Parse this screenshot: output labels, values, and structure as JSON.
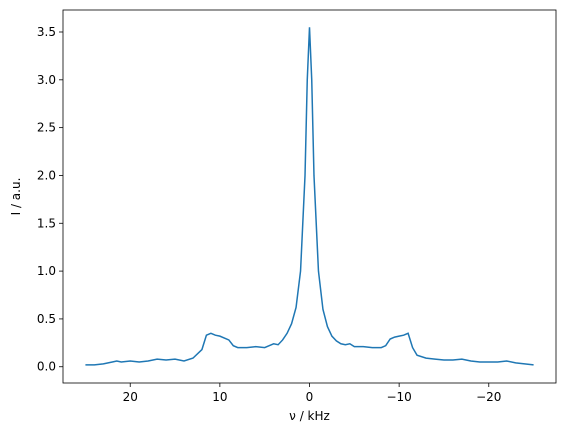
{
  "chart_data": {
    "type": "line",
    "xlabel": "ν / kHz",
    "ylabel": "I / a.u.",
    "x": [
      25,
      24,
      23,
      22,
      21.5,
      21,
      20,
      19,
      18,
      17,
      16,
      15,
      14,
      13,
      12,
      11.5,
      11,
      10.5,
      10,
      9,
      8.5,
      8,
      7,
      6,
      5,
      4.5,
      4,
      3.5,
      3,
      2.5,
      2,
      1.5,
      1,
      0.5,
      0.25,
      0,
      -0.25,
      -0.5,
      -1,
      -1.5,
      -2,
      -2.5,
      -3,
      -3.5,
      -4,
      -4.5,
      -5,
      -6,
      -7,
      -8,
      -8.5,
      -9,
      -9.5,
      -10,
      -10.5,
      -11,
      -11.5,
      -12,
      -13,
      -14,
      -15,
      -16,
      -17,
      -18,
      -19,
      -20,
      -21,
      -22,
      -23,
      -24,
      -25
    ],
    "series": [
      {
        "color": "#1f77b4",
        "values": [
          0.02,
          0.02,
          0.03,
          0.05,
          0.06,
          0.05,
          0.06,
          0.05,
          0.06,
          0.08,
          0.07,
          0.08,
          0.06,
          0.09,
          0.18,
          0.33,
          0.35,
          0.33,
          0.32,
          0.28,
          0.22,
          0.2,
          0.2,
          0.21,
          0.2,
          0.22,
          0.24,
          0.23,
          0.28,
          0.35,
          0.45,
          0.62,
          1.0,
          2.0,
          3.0,
          3.55,
          3.0,
          2.0,
          1.0,
          0.6,
          0.42,
          0.32,
          0.27,
          0.24,
          0.23,
          0.24,
          0.21,
          0.21,
          0.2,
          0.2,
          0.22,
          0.29,
          0.31,
          0.32,
          0.33,
          0.35,
          0.2,
          0.12,
          0.09,
          0.08,
          0.07,
          0.07,
          0.08,
          0.06,
          0.05,
          0.05,
          0.05,
          0.06,
          0.04,
          0.03,
          0.02
        ]
      }
    ],
    "xlim": [
      27.5,
      -27.5
    ],
    "xticks": [
      20,
      10,
      0,
      {
        "value": -10,
        "label": "−10"
      },
      {
        "value": -20,
        "label": "−20"
      }
    ],
    "ylim": [
      -0.17,
      3.73
    ],
    "yticks": [
      {
        "value": 0,
        "label": "0.0"
      },
      {
        "value": 0.5,
        "label": "0.5"
      },
      {
        "value": 1,
        "label": "1.0"
      },
      {
        "value": 1.5,
        "label": "1.5"
      },
      {
        "value": 2,
        "label": "2.0"
      },
      {
        "value": 2.5,
        "label": "2.5"
      },
      {
        "value": 3,
        "label": "3.0"
      },
      {
        "value": 3.5,
        "label": "3.5"
      }
    ]
  }
}
